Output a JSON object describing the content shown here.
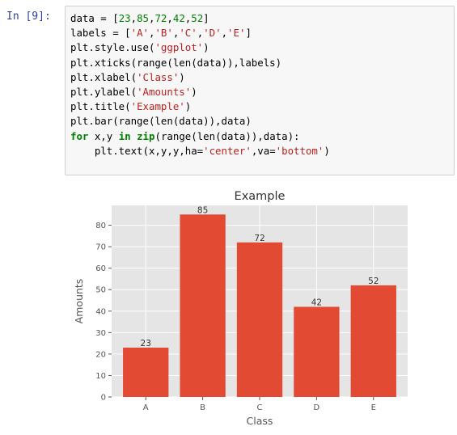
{
  "cell": {
    "prompt": "In  [9]:",
    "lines": [
      [
        {
          "t": "data = [",
          "c": ""
        },
        {
          "t": "23",
          "c": "num"
        },
        {
          "t": ",",
          "c": ""
        },
        {
          "t": "85",
          "c": "num"
        },
        {
          "t": ",",
          "c": ""
        },
        {
          "t": "72",
          "c": "num"
        },
        {
          "t": ",",
          "c": ""
        },
        {
          "t": "42",
          "c": "num"
        },
        {
          "t": ",",
          "c": ""
        },
        {
          "t": "52",
          "c": "num"
        },
        {
          "t": "]",
          "c": ""
        }
      ],
      [
        {
          "t": "labels = [",
          "c": ""
        },
        {
          "t": "'A'",
          "c": "str"
        },
        {
          "t": ",",
          "c": ""
        },
        {
          "t": "'B'",
          "c": "str"
        },
        {
          "t": ",",
          "c": ""
        },
        {
          "t": "'C'",
          "c": "str"
        },
        {
          "t": ",",
          "c": ""
        },
        {
          "t": "'D'",
          "c": "str"
        },
        {
          "t": ",",
          "c": ""
        },
        {
          "t": "'E'",
          "c": "str"
        },
        {
          "t": "]",
          "c": ""
        }
      ],
      [
        {
          "t": "plt.style.use(",
          "c": ""
        },
        {
          "t": "'ggplot'",
          "c": "str"
        },
        {
          "t": ")",
          "c": ""
        }
      ],
      [
        {
          "t": "plt.xticks(range(len(data)),labels)",
          "c": ""
        }
      ],
      [
        {
          "t": "plt.xlabel(",
          "c": ""
        },
        {
          "t": "'Class'",
          "c": "str"
        },
        {
          "t": ")",
          "c": ""
        }
      ],
      [
        {
          "t": "plt.ylabel(",
          "c": ""
        },
        {
          "t": "'Amounts'",
          "c": "str"
        },
        {
          "t": ")",
          "c": ""
        }
      ],
      [
        {
          "t": "plt.title(",
          "c": ""
        },
        {
          "t": "'Example'",
          "c": "str"
        },
        {
          "t": ")",
          "c": ""
        }
      ],
      [
        {
          "t": "plt.bar(range(len(data)),data)",
          "c": ""
        }
      ],
      [
        {
          "t": "for",
          "c": "kw"
        },
        {
          "t": " x,y ",
          "c": ""
        },
        {
          "t": "in",
          "c": "kw"
        },
        {
          "t": " ",
          "c": ""
        },
        {
          "t": "zip",
          "c": "kw"
        },
        {
          "t": "(range(len(data)),data):",
          "c": ""
        }
      ],
      [
        {
          "t": "    plt.text(x,y,y,ha=",
          "c": ""
        },
        {
          "t": "'center'",
          "c": "str"
        },
        {
          "t": ",va=",
          "c": ""
        },
        {
          "t": "'bottom'",
          "c": "str"
        },
        {
          "t": ")",
          "c": ""
        }
      ]
    ]
  },
  "colors": {
    "bar": "#e24a33",
    "plot_bg": "#e5e5e5",
    "grid": "#ffffff",
    "text": "#555555",
    "title": "#333333"
  },
  "chart_data": {
    "type": "bar",
    "title": "Example",
    "xlabel": "Class",
    "ylabel": "Amounts",
    "categories": [
      "A",
      "B",
      "C",
      "D",
      "E"
    ],
    "values": [
      23,
      85,
      72,
      42,
      52
    ],
    "data_labels": [
      "23",
      "85",
      "72",
      "42",
      "52"
    ],
    "ylim": [
      0,
      89.25
    ],
    "yticks": [
      0,
      10,
      20,
      30,
      40,
      50,
      60,
      70,
      80
    ],
    "grid": true,
    "style": "ggplot"
  }
}
